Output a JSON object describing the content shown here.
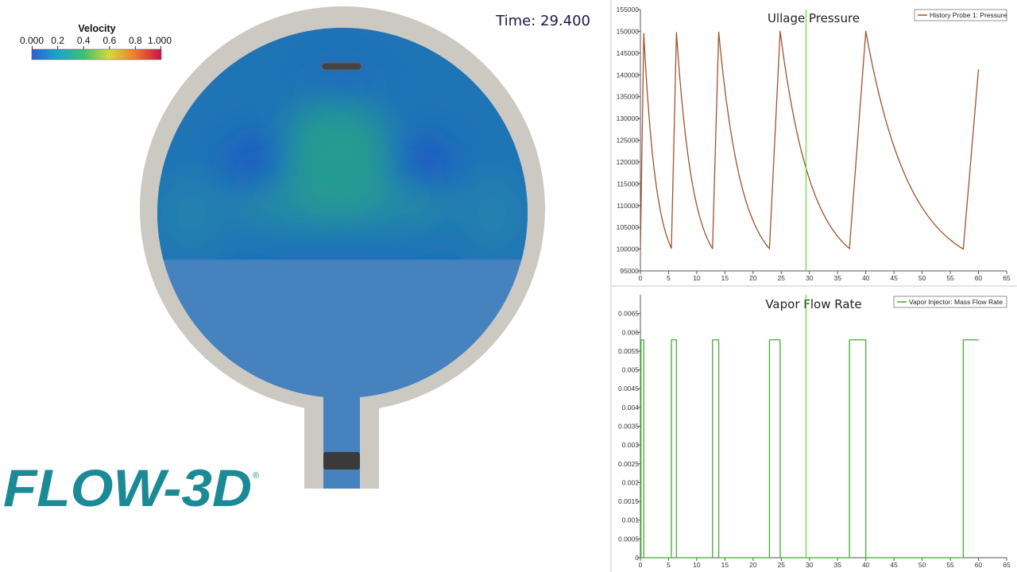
{
  "time_readout": "Time: 29.400",
  "logo": {
    "text": "FLOW-3D",
    "mark": "®"
  },
  "colorbar": {
    "title": "Velocity",
    "labels": [
      "0.000",
      "0.2",
      "0.4",
      "0.6",
      "0.8",
      "1.000"
    ],
    "colors": [
      "#2d5fd6",
      "#1aa5c8",
      "#3ec070",
      "#d6d83a",
      "#f07a2a",
      "#c8104a"
    ]
  },
  "colors": {
    "tank_wall": "#ccc9c3",
    "liquid": "#4682be",
    "vapor_base": "#1f74b6",
    "injector": "#444444",
    "cursor": "#66dd44"
  },
  "chart_data": [
    {
      "type": "line",
      "title": "Ullage Pressure",
      "xlim": [
        0,
        65
      ],
      "ylim": [
        95000,
        155000
      ],
      "xticks": [
        0,
        5,
        10,
        15,
        20,
        25,
        30,
        35,
        40,
        45,
        50,
        55,
        60,
        65
      ],
      "yticks": [
        95000,
        100000,
        105000,
        110000,
        115000,
        120000,
        125000,
        130000,
        135000,
        140000,
        145000,
        150000,
        155000
      ],
      "cursor_x": 29.4,
      "grid": false,
      "legend_position": "top-right",
      "series": [
        {
          "name": "History Probe 1: Pressure",
          "color": "#a0522d",
          "decay": "exp",
          "x": [
            0,
            0.6,
            5.5,
            6.4,
            12.8,
            13.9,
            22.9,
            24.8,
            37.1,
            40.0,
            57.3,
            60.0
          ],
          "y": [
            100000,
            149500,
            100200,
            149700,
            100100,
            149800,
            100100,
            150000,
            100100,
            150000,
            100000,
            141300
          ]
        }
      ]
    },
    {
      "type": "line",
      "title": "Vapor Flow Rate",
      "xlim": [
        0,
        65
      ],
      "ylim": [
        0,
        0.007
      ],
      "xticks": [
        0,
        5,
        10,
        15,
        20,
        25,
        30,
        35,
        40,
        45,
        50,
        55,
        60,
        65
      ],
      "yticks": [
        0,
        0.0005,
        0.001,
        0.0015,
        0.002,
        0.0025,
        0.003,
        0.0035,
        0.004,
        0.0045,
        0.005,
        0.0055,
        0.006,
        0.0065
      ],
      "cursor_x": 29.4,
      "grid": false,
      "legend_position": "top-right",
      "series": [
        {
          "name": "Vapor Injector: Mass Flow Rate",
          "color": "#44aa33",
          "step": true,
          "x": [
            0,
            0.1,
            0.1,
            0.6,
            0.6,
            5.5,
            5.5,
            6.4,
            6.4,
            12.8,
            12.8,
            13.9,
            13.9,
            22.9,
            22.9,
            24.8,
            24.8,
            37.1,
            37.1,
            40.0,
            40.0,
            57.3,
            57.3,
            60.0
          ],
          "y": [
            0,
            0,
            0.0058,
            0.0058,
            0,
            0,
            0.0058,
            0.0058,
            0,
            0,
            0.0058,
            0.0058,
            0,
            0,
            0.0058,
            0.0058,
            0,
            0,
            0.0058,
            0.0058,
            0,
            0,
            0.0058,
            0.0058
          ]
        }
      ]
    }
  ]
}
